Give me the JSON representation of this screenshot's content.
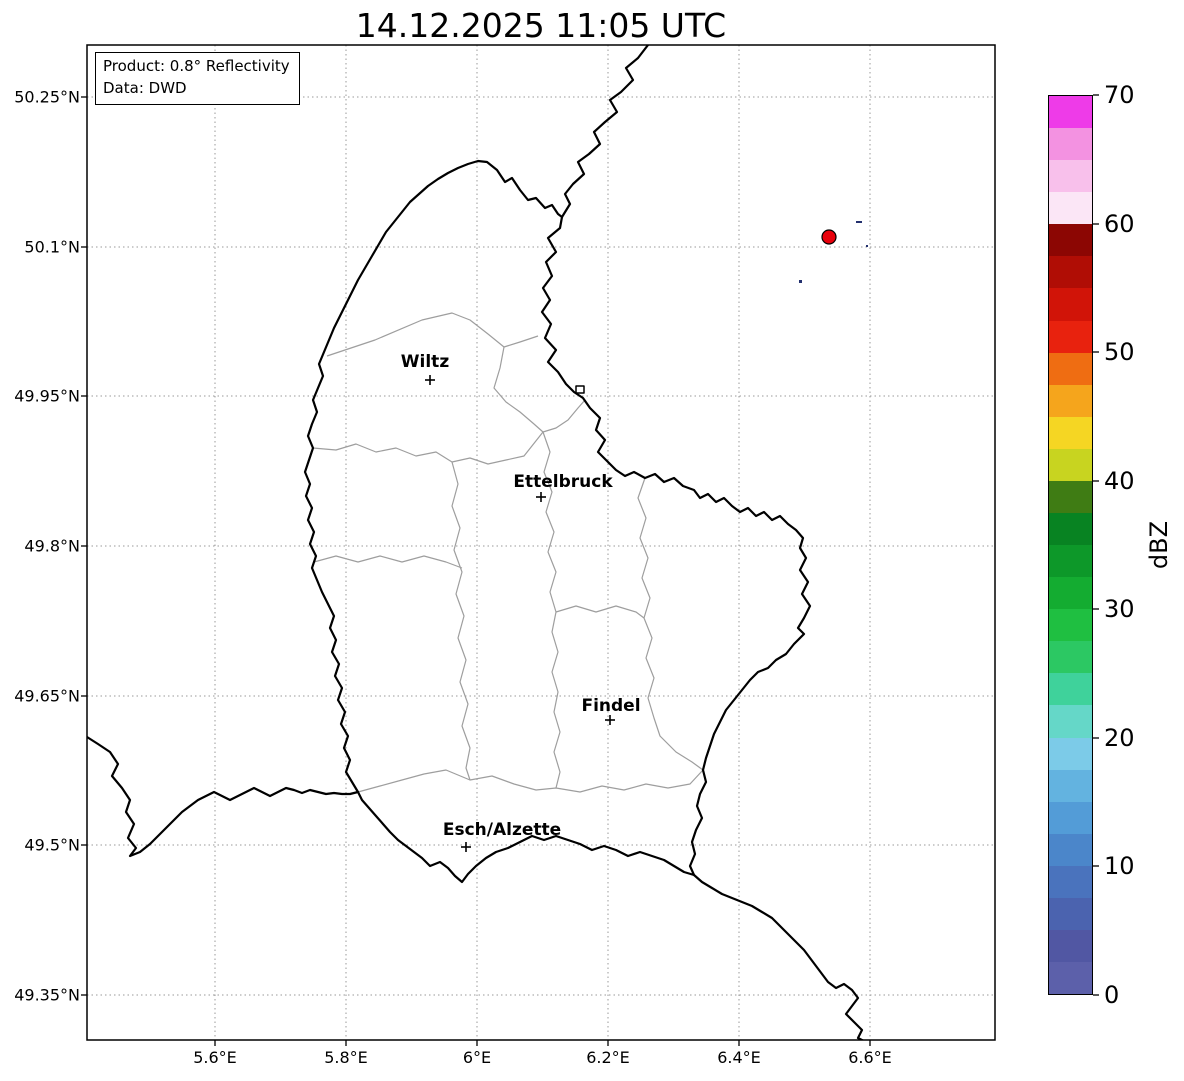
{
  "title": "14.12.2025 11:05 UTC",
  "info_box": {
    "product": "Product: 0.8° Reflectivity",
    "source": "Data: DWD"
  },
  "axes": {
    "x_ticks": [
      "5.6°E",
      "5.8°E",
      "6°E",
      "6.2°E",
      "6.4°E",
      "6.6°E"
    ],
    "y_ticks": [
      "50.25°N",
      "50.1°N",
      "49.95°N",
      "49.8°N",
      "49.65°N",
      "49.5°N",
      "49.35°N"
    ]
  },
  "cities": [
    {
      "name": "Wiltz"
    },
    {
      "name": "Ettelbruck"
    },
    {
      "name": "Findel"
    },
    {
      "name": "Esch/Alzette"
    }
  ],
  "colorbar": {
    "unit_label": "dBZ",
    "ticks": [
      "70",
      "60",
      "50",
      "40",
      "30",
      "20",
      "10",
      "0"
    ],
    "min_dbz": 0,
    "max_dbz": 70,
    "segment_step_dbz": 2.5,
    "segments_bottom_to_top": [
      "#5c60aa",
      "#5157a3",
      "#4b63af",
      "#4a73bd",
      "#4b86ca",
      "#539cd7",
      "#63b3e0",
      "#7ccbe8",
      "#65d7c8",
      "#3fd29b",
      "#2cc863",
      "#1fbf41",
      "#14ac31",
      "#0d9829",
      "#088322",
      "#3f7c14",
      "#c8d420",
      "#f5d623",
      "#f5a51c",
      "#ef6d12",
      "#e8220e",
      "#d11408",
      "#b00d05",
      "#8c0603",
      "#fbe6f6",
      "#f8c0eb",
      "#f392e1",
      "#ee3be8"
    ]
  },
  "map": {
    "colors": {
      "country_border": "#000000",
      "region_border": "#9e9e9e",
      "grid": "#999999",
      "radar_site": "#e8000b",
      "weak_echo": "#23306e"
    }
  }
}
